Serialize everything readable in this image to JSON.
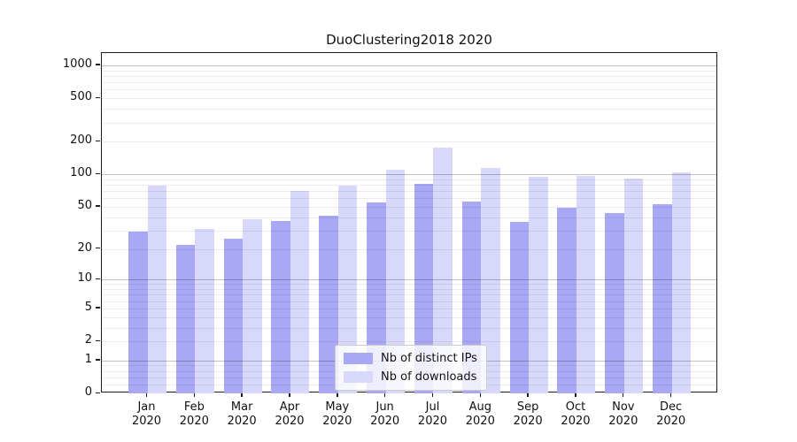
{
  "chart_data": {
    "type": "bar",
    "title": "DuoClustering2018 2020",
    "categories": [
      "Jan",
      "Feb",
      "Mar",
      "Apr",
      "May",
      "Jun",
      "Jul",
      "Aug",
      "Sep",
      "Oct",
      "Nov",
      "Dec"
    ],
    "category_year": "2020",
    "series": [
      {
        "name": "Nb of distinct IPs",
        "color": "#a8a8f5",
        "values": [
          29,
          22,
          25,
          37,
          41,
          55,
          82,
          56,
          36,
          49,
          44,
          53
        ]
      },
      {
        "name": "Nb of downloads",
        "color": "#d8d8fa",
        "values": [
          79,
          31,
          38,
          70,
          78,
          110,
          175,
          115,
          95,
          97,
          91,
          105
        ]
      }
    ],
    "yscale": "log1p",
    "ylim": [
      0,
      1300
    ],
    "y_ticks": [
      0,
      1,
      2,
      5,
      10,
      20,
      50,
      100,
      200,
      500,
      1000
    ],
    "y_minor_gridlines": [
      0.2,
      0.4,
      0.6,
      0.8,
      2,
      3,
      4,
      5,
      6,
      7,
      8,
      9,
      20,
      30,
      40,
      50,
      60,
      70,
      80,
      90,
      200,
      300,
      400,
      500,
      600,
      700,
      800,
      900
    ],
    "y_major_gridlines": [
      1,
      10,
      100,
      1000
    ],
    "grid": true,
    "legend_position": "lower center",
    "colors": {
      "spine": "#1c1c1c",
      "major_grid": "#c2c2c2",
      "minor_grid": "#ececec",
      "background": "#ffffff",
      "text": "#111111"
    }
  }
}
